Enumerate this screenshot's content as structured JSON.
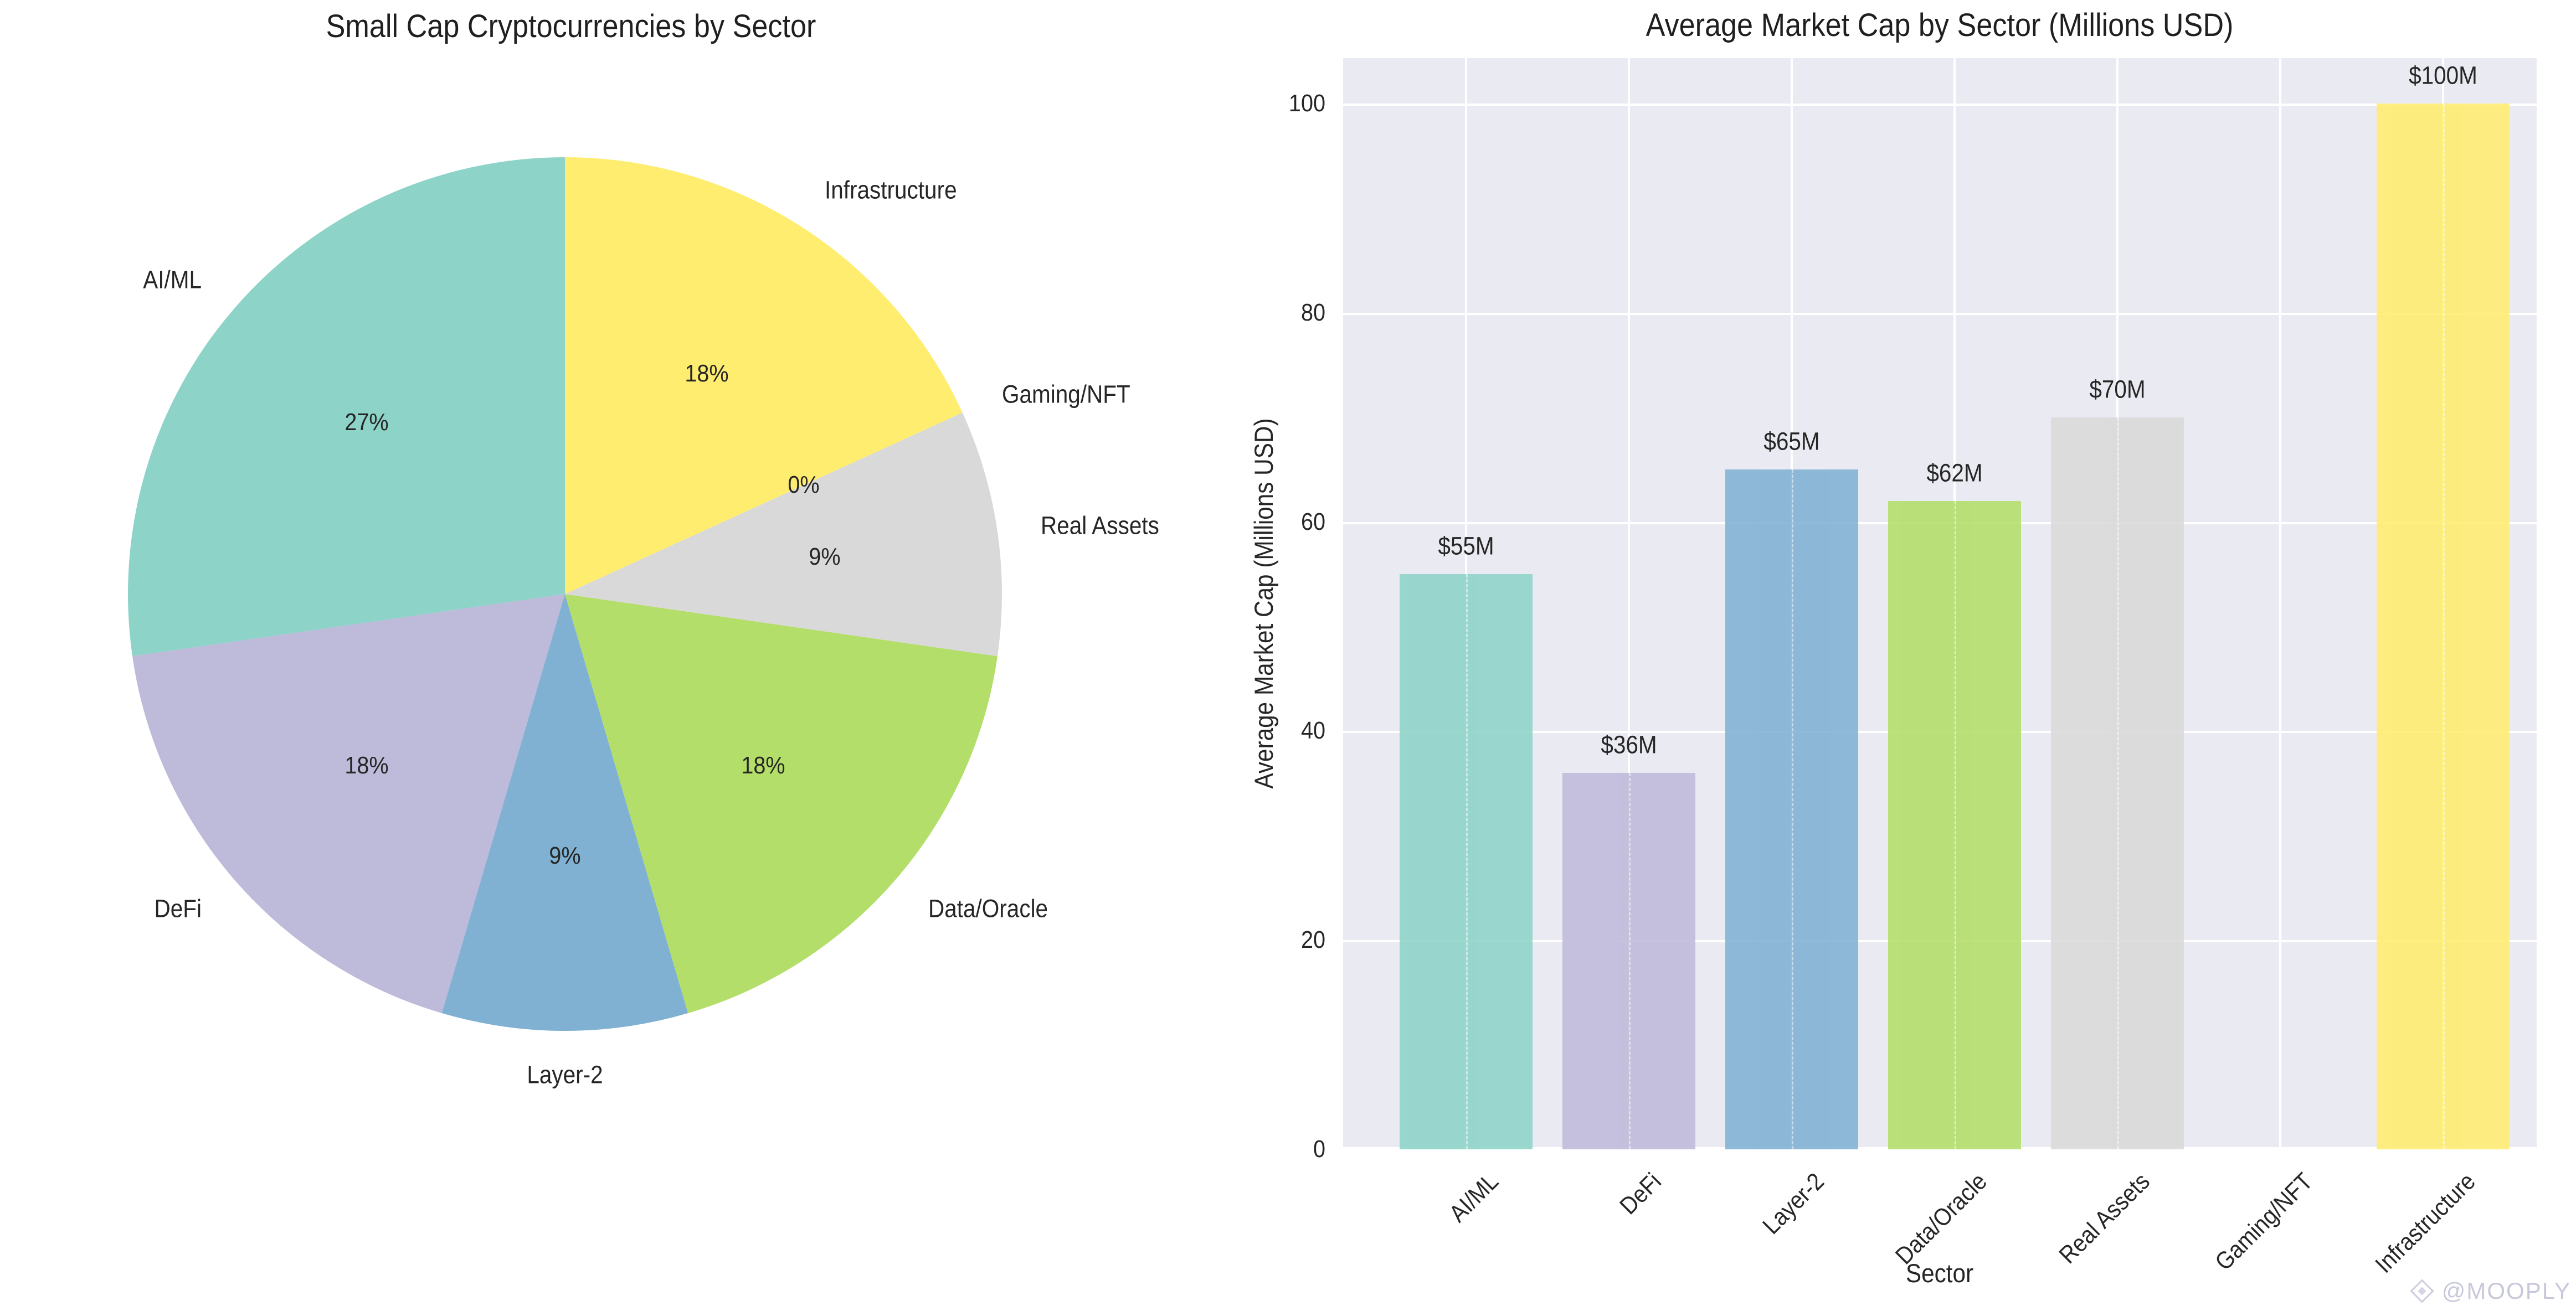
{
  "page": {
    "background": "#ffffff",
    "text_color": "#262626",
    "title_color": "#1f1f1f"
  },
  "watermark": {
    "icon": "diamond-logo",
    "label": "@MOOPLY",
    "color": "#c7c8d9"
  },
  "chart_data": [
    {
      "type": "pie",
      "title": "Small Cap Cryptocurrencies by Sector",
      "labels": [
        "AI/ML",
        "DeFi",
        "Layer-2",
        "Data/Oracle",
        "Real Assets",
        "Gaming/NFT",
        "Infrastructure"
      ],
      "values_pct": [
        27.3,
        18.2,
        9.1,
        18.2,
        9.1,
        0,
        18.2
      ],
      "pct_labels": [
        "27%",
        "18%",
        "9%",
        "18%",
        "9%",
        "0%",
        "18%"
      ],
      "colors": [
        "#8dd3c7",
        "#bebada",
        "#80b1d3",
        "#b3de69",
        "#d9d9d9",
        "#ccebc5",
        "#ffed6f"
      ],
      "start_angle": 90,
      "counterclock": true,
      "legend": "none"
    },
    {
      "type": "bar",
      "title": "Average Market Cap by Sector (Millions USD)",
      "xlabel": "Sector",
      "ylabel": "Average Market Cap (Millions USD)",
      "categories": [
        "AI/ML",
        "DeFi",
        "Layer-2",
        "Data/Oracle",
        "Real Assets",
        "Gaming/NFT",
        "Infrastructure"
      ],
      "values": [
        55,
        36,
        65,
        62,
        70,
        0,
        100
      ],
      "value_labels": [
        "$55M",
        "$36M",
        "$65M",
        "$62M",
        "$70M",
        "",
        "$100M"
      ],
      "colors": [
        "#8dd3c7",
        "#bebada",
        "#80b1d3",
        "#b3de69",
        "#d9d9d9",
        "#ccebc5",
        "#ffed6f"
      ],
      "bar_alpha": 0.88,
      "yticks": [
        0,
        20,
        40,
        60,
        80,
        100
      ],
      "ylim": [
        0,
        104.3
      ],
      "grid": true,
      "plot_bg": "#eaeaf2",
      "grid_color": "#ffffff",
      "xtick_rotation": 45
    }
  ]
}
